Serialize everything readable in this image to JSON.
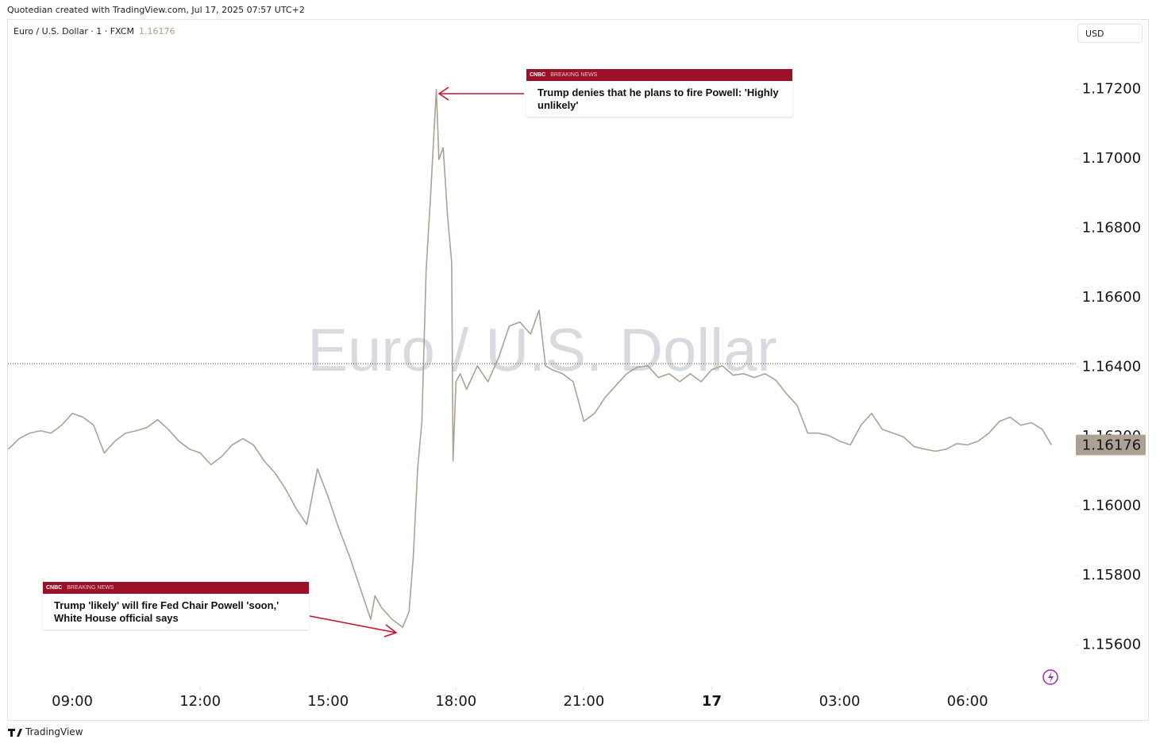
{
  "header": {
    "credit": "Quotedian created with TradingView.com, Jul 17, 2025 07:57 UTC+2"
  },
  "chart_data": {
    "type": "line",
    "title": "Euro / U.S. Dollar · 1 · FXCM",
    "last_price": 1.16176,
    "currency": "USD",
    "watermark": "Euro / U.S. Dollar",
    "color": "#ada193",
    "x": [
      7.5,
      7.75,
      8,
      8.25,
      8.5,
      8.75,
      9,
      9.25,
      9.5,
      9.75,
      10,
      10.25,
      10.5,
      10.75,
      11,
      11.25,
      11.5,
      11.75,
      12,
      12.25,
      12.5,
      12.75,
      13,
      13.25,
      13.5,
      13.75,
      14,
      14.25,
      14.5,
      14.75,
      15,
      15.25,
      15.5,
      15.75,
      16,
      16.1,
      16.25,
      16.5,
      16.75,
      16.9,
      17,
      17.1,
      17.2,
      17.3,
      17.4,
      17.5,
      17.54,
      17.6,
      17.7,
      17.8,
      17.9,
      17.93,
      18,
      18.1,
      18.25,
      18.5,
      18.75,
      19,
      19.25,
      19.5,
      19.75,
      19.95,
      20.1,
      20.25,
      20.5,
      20.75,
      21,
      21.25,
      21.5,
      21.75,
      22,
      22.25,
      22.5,
      22.75,
      23,
      23.25,
      23.5,
      23.75,
      24,
      24.25,
      24.5,
      24.75,
      25,
      25.25,
      25.5,
      25.75,
      26,
      26.25,
      26.5,
      26.75,
      27,
      27.25,
      27.5,
      27.75,
      28,
      28.25,
      28.5,
      28.75,
      29,
      29.25,
      29.5,
      29.75,
      30,
      30.25,
      30.5,
      30.75,
      31,
      31.25,
      31.5,
      31.75,
      31.97
    ],
    "values": [
      1.16164,
      1.16194,
      1.1621,
      1.16217,
      1.1621,
      1.16233,
      1.16267,
      1.16256,
      1.16233,
      1.16153,
      1.16187,
      1.1621,
      1.16217,
      1.16226,
      1.16249,
      1.16221,
      1.16187,
      1.16164,
      1.16153,
      1.16119,
      1.16142,
      1.16176,
      1.16194,
      1.16176,
      1.1613,
      1.16096,
      1.1605,
      1.15993,
      1.15947,
      1.16107,
      1.16027,
      1.15936,
      1.15856,
      1.15765,
      1.15674,
      1.15742,
      1.15708,
      1.15674,
      1.15651,
      1.15696,
      1.15856,
      1.16107,
      1.16244,
      1.16678,
      1.16884,
      1.17112,
      1.172,
      1.16998,
      1.17032,
      1.16838,
      1.16701,
      1.1613,
      1.16358,
      1.16381,
      1.16336,
      1.16404,
      1.16358,
      1.16427,
      1.16518,
      1.1653,
      1.16495,
      1.16564,
      1.16404,
      1.16393,
      1.16381,
      1.16358,
      1.16244,
      1.16267,
      1.16313,
      1.16347,
      1.16381,
      1.164,
      1.16404,
      1.1637,
      1.16381,
      1.16358,
      1.16381,
      1.16358,
      1.16393,
      1.16404,
      1.16377,
      1.16381,
      1.1637,
      1.16381,
      1.16363,
      1.16324,
      1.1629,
      1.1621,
      1.1621,
      1.16203,
      1.16187,
      1.16176,
      1.16233,
      1.16267,
      1.16221,
      1.1621,
      1.16199,
      1.16171,
      1.16164,
      1.16158,
      1.16164,
      1.1618,
      1.16176,
      1.16187,
      1.1621,
      1.16244,
      1.16256,
      1.16233,
      1.1624,
      1.16221,
      1.16176
    ],
    "reference_line": 1.1641,
    "xlim": [
      7.49,
      32.54
    ],
    "xticks": [
      {
        "value": 9,
        "label": "09:00"
      },
      {
        "value": 12,
        "label": "12:00"
      },
      {
        "value": 15,
        "label": "15:00"
      },
      {
        "value": 18,
        "label": "18:00"
      },
      {
        "value": 21,
        "label": "21:00"
      },
      {
        "value": 24,
        "label": "17"
      },
      {
        "value": 27,
        "label": "03:00"
      },
      {
        "value": 30,
        "label": "06:00"
      }
    ],
    "ylim": [
      1.1548,
      1.174
    ],
    "yticks": [
      {
        "value": 1.156,
        "label": "1.15600"
      },
      {
        "value": 1.158,
        "label": "1.15800"
      },
      {
        "value": 1.16,
        "label": "1.16000"
      },
      {
        "value": 1.162,
        "label": "1.16200"
      },
      {
        "value": 1.164,
        "label": "1.16400"
      },
      {
        "value": 1.166,
        "label": "1.16600"
      },
      {
        "value": 1.168,
        "label": "1.16800"
      },
      {
        "value": 1.17,
        "label": "1.17000"
      },
      {
        "value": 1.172,
        "label": "1.17200"
      }
    ],
    "annotations": [
      {
        "source": "CNBC",
        "tag": "BREAKING NEWS",
        "text": "Trump denies that he plans to fire Powell: 'Highly unlikely'"
      },
      {
        "source": "CNBC",
        "tag": "BREAKING NEWS",
        "text": "Trump 'likely' will fire Fed Chair Powell 'soon,' White House official says"
      }
    ]
  },
  "footer": {
    "brand": "TradingView"
  }
}
